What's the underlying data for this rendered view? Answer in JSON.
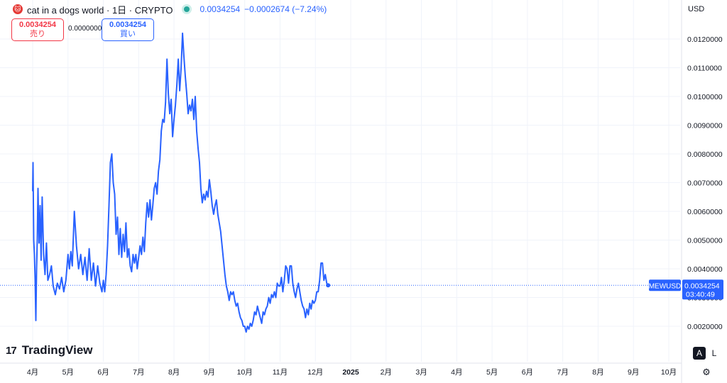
{
  "header": {
    "symbol_title": "cat in a dogs world · 1日 · CRYPTO",
    "last_value": "0.0034254",
    "change": "−0.0002674 (−7.24%)",
    "logo_glyph": "🐱"
  },
  "trade": {
    "sell_price": "0.0034254",
    "sell_label": "売り",
    "spread": "0.0000000",
    "buy_price": "0.0034254",
    "buy_label": "買い"
  },
  "currency": "USD",
  "price_tag": {
    "ticker": "MEWUSD",
    "value": "0.0034254",
    "countdown": "03:40:49"
  },
  "branding": "TradingView",
  "scale_buttons": {
    "auto": "A",
    "log": "L"
  },
  "colors": {
    "line": "#2962ff",
    "tag": "#2962ff",
    "sell": "#f23645",
    "buy": "#2962ff"
  },
  "chart_data": {
    "type": "line",
    "title": "cat in a dogs world · 1日 · CRYPTO",
    "series": [
      {
        "name": "MEWUSD",
        "points": [
          [
            0.0,
            0.0067
          ],
          [
            0.01,
            0.0077
          ],
          [
            0.03,
            0.005
          ],
          [
            0.05,
            0.0045
          ],
          [
            0.07,
            0.0036
          ],
          [
            0.09,
            0.0022
          ],
          [
            0.11,
            0.004
          ],
          [
            0.13,
            0.005
          ],
          [
            0.15,
            0.0068
          ],
          [
            0.18,
            0.0049
          ],
          [
            0.21,
            0.0062
          ],
          [
            0.24,
            0.0043
          ],
          [
            0.27,
            0.0065
          ],
          [
            0.31,
            0.0045
          ],
          [
            0.35,
            0.0038
          ],
          [
            0.39,
            0.0049
          ],
          [
            0.43,
            0.0036
          ],
          [
            0.48,
            0.0038
          ],
          [
            0.53,
            0.0041
          ],
          [
            0.58,
            0.0034
          ],
          [
            0.64,
            0.0031
          ],
          [
            0.7,
            0.0035
          ],
          [
            0.76,
            0.0033
          ],
          [
            0.82,
            0.0037
          ],
          [
            0.88,
            0.0032
          ],
          [
            0.94,
            0.0036
          ],
          [
            1.0,
            0.0045
          ],
          [
            1.04,
            0.004
          ],
          [
            1.08,
            0.0046
          ],
          [
            1.12,
            0.0041
          ],
          [
            1.18,
            0.006
          ],
          [
            1.24,
            0.0048
          ],
          [
            1.3,
            0.004
          ],
          [
            1.36,
            0.0045
          ],
          [
            1.42,
            0.0038
          ],
          [
            1.48,
            0.0044
          ],
          [
            1.54,
            0.0036
          ],
          [
            1.6,
            0.0047
          ],
          [
            1.66,
            0.0036
          ],
          [
            1.72,
            0.0042
          ],
          [
            1.78,
            0.0034
          ],
          [
            1.84,
            0.0041
          ],
          [
            1.9,
            0.0035
          ],
          [
            1.96,
            0.0032
          ],
          [
            2.0,
            0.0036
          ],
          [
            2.04,
            0.0032
          ],
          [
            2.08,
            0.0038
          ],
          [
            2.12,
            0.0048
          ],
          [
            2.16,
            0.0062
          ],
          [
            2.2,
            0.0077
          ],
          [
            2.24,
            0.008
          ],
          [
            2.28,
            0.007
          ],
          [
            2.32,
            0.0066
          ],
          [
            2.36,
            0.0052
          ],
          [
            2.4,
            0.0058
          ],
          [
            2.44,
            0.0045
          ],
          [
            2.48,
            0.0054
          ],
          [
            2.52,
            0.0044
          ],
          [
            2.56,
            0.0052
          ],
          [
            2.6,
            0.0046
          ],
          [
            2.64,
            0.0056
          ],
          [
            2.68,
            0.0044
          ],
          [
            2.72,
            0.0047
          ],
          [
            2.76,
            0.0041
          ],
          [
            2.8,
            0.0039
          ],
          [
            2.84,
            0.0045
          ],
          [
            2.88,
            0.0042
          ],
          [
            2.92,
            0.0045
          ],
          [
            2.96,
            0.004
          ],
          [
            3.0,
            0.0044
          ],
          [
            3.04,
            0.0048
          ],
          [
            3.08,
            0.0045
          ],
          [
            3.12,
            0.0051
          ],
          [
            3.16,
            0.0046
          ],
          [
            3.2,
            0.0056
          ],
          [
            3.24,
            0.0063
          ],
          [
            3.28,
            0.0058
          ],
          [
            3.32,
            0.0064
          ],
          [
            3.36,
            0.0057
          ],
          [
            3.4,
            0.0062
          ],
          [
            3.44,
            0.0068
          ],
          [
            3.48,
            0.007
          ],
          [
            3.52,
            0.0066
          ],
          [
            3.56,
            0.0074
          ],
          [
            3.6,
            0.0078
          ],
          [
            3.64,
            0.0088
          ],
          [
            3.68,
            0.0092
          ],
          [
            3.72,
            0.0091
          ],
          [
            3.76,
            0.0098
          ],
          [
            3.8,
            0.0113
          ],
          [
            3.84,
            0.0101
          ],
          [
            3.88,
            0.0094
          ],
          [
            3.92,
            0.0099
          ],
          [
            3.96,
            0.0086
          ],
          [
            4.0,
            0.0092
          ],
          [
            4.04,
            0.0097
          ],
          [
            4.08,
            0.0104
          ],
          [
            4.12,
            0.0113
          ],
          [
            4.16,
            0.0102
          ],
          [
            4.2,
            0.011
          ],
          [
            4.24,
            0.0122
          ],
          [
            4.28,
            0.0114
          ],
          [
            4.32,
            0.0107
          ],
          [
            4.36,
            0.0101
          ],
          [
            4.4,
            0.0094
          ],
          [
            4.44,
            0.0097
          ],
          [
            4.48,
            0.0095
          ],
          [
            4.52,
            0.0099
          ],
          [
            4.56,
            0.0092
          ],
          [
            4.6,
            0.01
          ],
          [
            4.64,
            0.0088
          ],
          [
            4.68,
            0.0082
          ],
          [
            4.72,
            0.0077
          ],
          [
            4.76,
            0.0068
          ],
          [
            4.8,
            0.0063
          ],
          [
            4.84,
            0.0066
          ],
          [
            4.88,
            0.0064
          ],
          [
            4.92,
            0.0067
          ],
          [
            4.96,
            0.0065
          ],
          [
            5.0,
            0.0071
          ],
          [
            5.04,
            0.0067
          ],
          [
            5.08,
            0.0062
          ],
          [
            5.12,
            0.0059
          ],
          [
            5.16,
            0.0062
          ],
          [
            5.2,
            0.0064
          ],
          [
            5.24,
            0.0059
          ],
          [
            5.28,
            0.0056
          ],
          [
            5.32,
            0.0053
          ],
          [
            5.36,
            0.0048
          ],
          [
            5.4,
            0.0043
          ],
          [
            5.44,
            0.0038
          ],
          [
            5.48,
            0.0034
          ],
          [
            5.52,
            0.0032
          ],
          [
            5.56,
            0.0029
          ],
          [
            5.6,
            0.0032
          ],
          [
            5.64,
            0.0031
          ],
          [
            5.68,
            0.0032
          ],
          [
            5.72,
            0.0029
          ],
          [
            5.76,
            0.0027
          ],
          [
            5.8,
            0.0028
          ],
          [
            5.84,
            0.0025
          ],
          [
            5.88,
            0.0023
          ],
          [
            5.92,
            0.0022
          ],
          [
            5.96,
            0.002
          ],
          [
            6.0,
            0.002
          ],
          [
            6.04,
            0.0018
          ],
          [
            6.08,
            0.002
          ],
          [
            6.12,
            0.0019
          ],
          [
            6.16,
            0.0021
          ],
          [
            6.2,
            0.002
          ],
          [
            6.24,
            0.0022
          ],
          [
            6.28,
            0.0025
          ],
          [
            6.32,
            0.0024
          ],
          [
            6.36,
            0.0027
          ],
          [
            6.4,
            0.0025
          ],
          [
            6.44,
            0.0023
          ],
          [
            6.48,
            0.0021
          ],
          [
            6.52,
            0.0025
          ],
          [
            6.56,
            0.0024
          ],
          [
            6.6,
            0.0026
          ],
          [
            6.64,
            0.0027
          ],
          [
            6.68,
            0.003
          ],
          [
            6.72,
            0.0028
          ],
          [
            6.76,
            0.0031
          ],
          [
            6.8,
            0.003
          ],
          [
            6.84,
            0.0032
          ],
          [
            6.88,
            0.003
          ],
          [
            6.92,
            0.0035
          ],
          [
            6.96,
            0.0034
          ],
          [
            7.0,
            0.0034
          ],
          [
            7.04,
            0.0037
          ],
          [
            7.08,
            0.0032
          ],
          [
            7.12,
            0.0036
          ],
          [
            7.16,
            0.0041
          ],
          [
            7.2,
            0.004
          ],
          [
            7.24,
            0.0035
          ],
          [
            7.28,
            0.0041
          ],
          [
            7.32,
            0.0041
          ],
          [
            7.36,
            0.0035
          ],
          [
            7.4,
            0.0032
          ],
          [
            7.44,
            0.003
          ],
          [
            7.48,
            0.0033
          ],
          [
            7.52,
            0.0035
          ],
          [
            7.56,
            0.0032
          ],
          [
            7.6,
            0.0029
          ],
          [
            7.64,
            0.0027
          ],
          [
            7.68,
            0.0026
          ],
          [
            7.72,
            0.0023
          ],
          [
            7.76,
            0.0026
          ],
          [
            7.8,
            0.0024
          ],
          [
            7.84,
            0.0028
          ],
          [
            7.88,
            0.0026
          ],
          [
            7.92,
            0.0029
          ],
          [
            7.96,
            0.0028
          ],
          [
            8.0,
            0.0029
          ],
          [
            8.04,
            0.0032
          ],
          [
            8.08,
            0.0032
          ],
          [
            8.12,
            0.0036
          ],
          [
            8.16,
            0.0042
          ],
          [
            8.2,
            0.0042
          ],
          [
            8.24,
            0.0036
          ],
          [
            8.28,
            0.0038
          ],
          [
            8.32,
            0.0035
          ],
          [
            8.36,
            0.0034254
          ]
        ]
      }
    ],
    "x_ticks": [
      {
        "value": 0,
        "label": "4月"
      },
      {
        "value": 1,
        "label": "5月"
      },
      {
        "value": 2,
        "label": "6月"
      },
      {
        "value": 3,
        "label": "7月"
      },
      {
        "value": 4,
        "label": "8月"
      },
      {
        "value": 5,
        "label": "9月"
      },
      {
        "value": 6,
        "label": "10月"
      },
      {
        "value": 7,
        "label": "11月"
      },
      {
        "value": 8,
        "label": "12月"
      },
      {
        "value": 9,
        "label": "2025"
      },
      {
        "value": 10,
        "label": "2月"
      },
      {
        "value": 11,
        "label": "3月"
      },
      {
        "value": 12,
        "label": "4月"
      },
      {
        "value": 13,
        "label": "5月"
      },
      {
        "value": 14,
        "label": "6月"
      },
      {
        "value": 15,
        "label": "7月"
      },
      {
        "value": 16,
        "label": "8月"
      },
      {
        "value": 17,
        "label": "9月"
      },
      {
        "value": 18,
        "label": "10月"
      }
    ],
    "y_ticks": [
      {
        "value": 0.002,
        "label": "0.0020000"
      },
      {
        "value": 0.003,
        "label": "0.0030000"
      },
      {
        "value": 0.004,
        "label": "0.0040000"
      },
      {
        "value": 0.005,
        "label": "0.0050000"
      },
      {
        "value": 0.006,
        "label": "0.0060000"
      },
      {
        "value": 0.007,
        "label": "0.0070000"
      },
      {
        "value": 0.008,
        "label": "0.0080000"
      },
      {
        "value": 0.009,
        "label": "0.0090000"
      },
      {
        "value": 0.01,
        "label": "0.0100000"
      },
      {
        "value": 0.011,
        "label": "0.0110000"
      },
      {
        "value": 0.012,
        "label": "0.0120000"
      }
    ],
    "ylim": [
      0.00095,
      0.01285
    ],
    "xlim": [
      -0.1,
      18.6
    ],
    "last_price": 0.0034254
  }
}
